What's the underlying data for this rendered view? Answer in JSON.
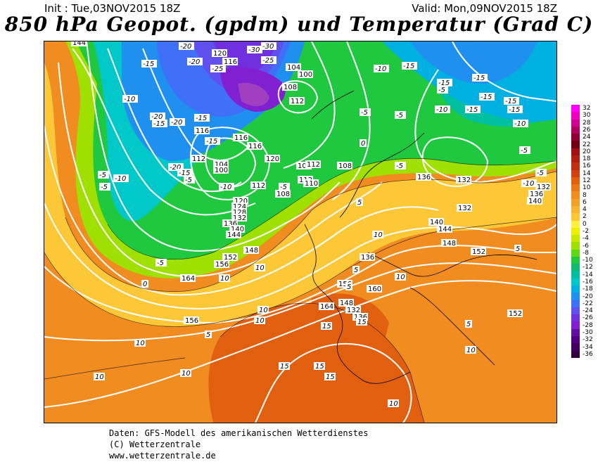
{
  "header": {
    "init": "Init : Tue,03NOV2015 18Z",
    "valid": "Valid: Mon,09NOV2015 18Z",
    "title": "850 hPa Geopot. (gpdm) und Temperatur (Grad C)"
  },
  "colorbar": {
    "values": [
      "32",
      "30",
      "28",
      "26",
      "24",
      "22",
      "20",
      "18",
      "16",
      "14",
      "12",
      "10",
      "8",
      "6",
      "4",
      "2",
      "0",
      "-2",
      "-4",
      "-6",
      "-8",
      "-10",
      "-12",
      "-14",
      "-16",
      "-18",
      "-20",
      "-22",
      "-24",
      "-26",
      "-28",
      "-30",
      "-32",
      "-34",
      "-36"
    ],
    "colors": [
      "#ff00ff",
      "#f000c0",
      "#d00090",
      "#b00060",
      "#900030",
      "#700010",
      "#a01010",
      "#b02010",
      "#c03010",
      "#d04010",
      "#e06010",
      "#e87818",
      "#f08c20",
      "#f4a028",
      "#f8b430",
      "#fcc838",
      "#fff040",
      "#ecf000",
      "#c8e800",
      "#a0e000",
      "#60d818",
      "#20c840",
      "#10b870",
      "#00c0a0",
      "#00c8c8",
      "#00b0e0",
      "#2090f0",
      "#4070f8",
      "#6050f0",
      "#7030e0",
      "#8020d0",
      "#6010a0",
      "#500080",
      "#400060",
      "#300040"
    ]
  },
  "map_labels": {
    "geopotential": [
      "144",
      "120",
      "116",
      "104",
      "100",
      "108",
      "112",
      "116",
      "116",
      "112",
      "104",
      "100",
      "108",
      "112",
      "116",
      "120",
      "124",
      "128",
      "132",
      "136",
      "140",
      "144",
      "148",
      "152",
      "156",
      "164",
      "164",
      "148",
      "156",
      "160",
      "136",
      "140",
      "144",
      "148",
      "152",
      "152",
      "132",
      "136",
      "140",
      "132",
      "132",
      "136",
      "120",
      "112",
      "110",
      "156",
      "108",
      "132",
      "136",
      "112",
      "108"
    ],
    "temperature": [
      "-20",
      "-30",
      "-30",
      "-25",
      "-20",
      "-25",
      "-15",
      "-10",
      "-20",
      "-15",
      "-20",
      "-15",
      "-10",
      "-5",
      "-5",
      "-5",
      "-10",
      "-5",
      "0",
      "5",
      "10",
      "10",
      "10",
      "10",
      "15",
      "15",
      "15",
      "15",
      "10",
      "10",
      "5",
      "5",
      "0",
      "5",
      "-5",
      "-10",
      "-15",
      "-15",
      "-15",
      "-15",
      "-10",
      "-5",
      "-5",
      "-5",
      "0",
      "5",
      "10",
      "15",
      "10",
      "5",
      "-15",
      "-15",
      "-15",
      "-10",
      "-5",
      "-5",
      "-5",
      "-10",
      "-15",
      "-20",
      "-15",
      "10",
      "10",
      "10"
    ]
  },
  "footer": {
    "line1": "Daten: GFS-Modell des amerikanischen Wetterdienstes",
    "line2": "(C) Wetterzentrale",
    "line3": "www.wetterzentrale.de"
  }
}
